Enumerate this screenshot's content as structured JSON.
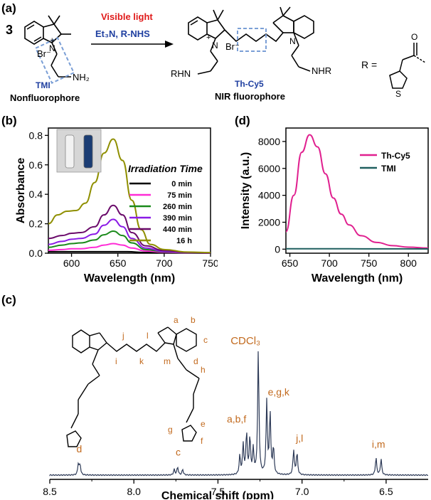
{
  "panels": {
    "a": {
      "label": "(a)",
      "coefficient": "3",
      "reaction_condition_1": "Visible light",
      "reaction_condition_2": "Et₃N, R-NHS",
      "reactant_name": "TMI",
      "reactant_desc": "Nonfluorophore",
      "product_name": "Th-Cy5",
      "product_desc": "NIR fluorophore",
      "bromide": "Br⁻",
      "nh2": "NH₂",
      "rhn": "RHN",
      "nhr": "NHR",
      "r_eq": "R =",
      "s_atom": "S",
      "o_atom": "O",
      "n_atom": "N",
      "plus": "+"
    },
    "b": {
      "label": "(b)"
    },
    "c": {
      "label": "(c)"
    },
    "d": {
      "label": "(d)"
    }
  },
  "chart_data": [
    {
      "panel": "b",
      "type": "line",
      "xlabel": "Wavelength (nm)",
      "ylabel": "Absorbance",
      "xlim": [
        575,
        750
      ],
      "ylim": [
        0,
        0.85
      ],
      "xticks": [
        600,
        650,
        700,
        750
      ],
      "yticks": [
        0.0,
        0.2,
        0.4,
        0.6,
        0.8
      ],
      "legend_title": "Irradiation Time",
      "legend_position": "right",
      "series": [
        {
          "name": "0 min",
          "color": "#000000",
          "x": [
            575,
            600,
            625,
            645,
            660,
            680,
            700,
            725,
            750
          ],
          "y": [
            0.01,
            0.01,
            0.01,
            0.01,
            0.01,
            0.005,
            0.003,
            0.002,
            0.001
          ]
        },
        {
          "name": "75 min",
          "color": "#ff2bd6",
          "x": [
            575,
            590,
            600,
            610,
            625,
            635,
            645,
            655,
            665,
            680,
            700,
            725,
            750
          ],
          "y": [
            0.02,
            0.025,
            0.03,
            0.03,
            0.04,
            0.055,
            0.065,
            0.055,
            0.035,
            0.015,
            0.007,
            0.003,
            0.002
          ]
        },
        {
          "name": "260 min",
          "color": "#1a8a1a",
          "x": [
            575,
            590,
            600,
            610,
            625,
            635,
            645,
            655,
            665,
            680,
            700,
            725,
            750
          ],
          "y": [
            0.04,
            0.055,
            0.065,
            0.07,
            0.09,
            0.125,
            0.15,
            0.12,
            0.07,
            0.025,
            0.01,
            0.004,
            0.002
          ]
        },
        {
          "name": "390 min",
          "color": "#8a1ae6",
          "x": [
            575,
            590,
            600,
            610,
            625,
            635,
            645,
            655,
            665,
            680,
            700,
            725,
            750
          ],
          "y": [
            0.06,
            0.08,
            0.095,
            0.1,
            0.13,
            0.19,
            0.23,
            0.18,
            0.1,
            0.035,
            0.012,
            0.005,
            0.002
          ]
        },
        {
          "name": "440 min",
          "color": "#6a0a6a",
          "x": [
            575,
            590,
            600,
            610,
            625,
            635,
            645,
            655,
            665,
            680,
            700,
            725,
            750
          ],
          "y": [
            0.1,
            0.12,
            0.135,
            0.14,
            0.18,
            0.26,
            0.325,
            0.26,
            0.14,
            0.05,
            0.018,
            0.006,
            0.003
          ]
        },
        {
          "name": "16 h",
          "color": "#8f8f00",
          "x": [
            575,
            585,
            595,
            605,
            615,
            625,
            635,
            645,
            655,
            665,
            675,
            685,
            700,
            725,
            750
          ],
          "y": [
            0.2,
            0.26,
            0.285,
            0.29,
            0.34,
            0.48,
            0.68,
            0.775,
            0.63,
            0.36,
            0.16,
            0.06,
            0.025,
            0.008,
            0.004
          ]
        }
      ]
    },
    {
      "panel": "d",
      "type": "line",
      "xlabel": "Wavelength (nm)",
      "ylabel": "Intensity (a.u.)",
      "xlim": [
        645,
        825
      ],
      "ylim": [
        -300,
        9000
      ],
      "xticks": [
        650,
        700,
        750,
        800
      ],
      "yticks": [
        0,
        2000,
        4000,
        6000,
        8000
      ],
      "legend_position": "top-right",
      "series": [
        {
          "name": "Th-Cy5",
          "color": "#e0208f",
          "x": [
            645,
            655,
            665,
            675,
            685,
            695,
            705,
            715,
            725,
            740,
            760,
            780,
            800,
            825
          ],
          "y": [
            1300,
            4000,
            7200,
            8500,
            7600,
            5600,
            3800,
            2600,
            1800,
            1000,
            500,
            260,
            150,
            80
          ]
        },
        {
          "name": "TMI",
          "color": "#1f5f5f",
          "x": [
            645,
            700,
            750,
            825
          ],
          "y": [
            30,
            30,
            25,
            20
          ]
        }
      ]
    },
    {
      "panel": "c",
      "type": "line",
      "xlabel": "Chemical shift (ppm)",
      "xlim": [
        8.5,
        6.25
      ],
      "xticks": [
        8.5,
        8.0,
        7.5,
        7.0,
        6.5
      ],
      "solvent_label": "CDCl₃",
      "peaks": [
        {
          "label": "d",
          "ppm": [
            8.33,
            8.32
          ],
          "height": [
            0.09,
            0.08
          ]
        },
        {
          "label": "c",
          "ppm": [
            7.76,
            7.74,
            7.71
          ],
          "height": [
            0.045,
            0.065,
            0.045
          ]
        },
        {
          "label": "a,b,f",
          "ppm": [
            7.37,
            7.35,
            7.33,
            7.31,
            7.29
          ],
          "height": [
            0.15,
            0.24,
            0.34,
            0.3,
            0.2
          ]
        },
        {
          "label": "CDCl₃",
          "ppm": [
            7.26
          ],
          "height": [
            1.0
          ]
        },
        {
          "label": "e,g,k",
          "ppm": [
            7.21,
            7.19,
            7.17
          ],
          "height": [
            0.58,
            0.5,
            0.22
          ]
        },
        {
          "label": "j,l",
          "ppm": [
            7.05,
            7.03
          ],
          "height": [
            0.2,
            0.18
          ]
        },
        {
          "label": "i,m",
          "ppm": [
            6.56,
            6.53
          ],
          "height": [
            0.14,
            0.13
          ]
        }
      ],
      "atom_labels": [
        "a",
        "b",
        "c",
        "d",
        "h",
        "i",
        "j",
        "k",
        "l",
        "m",
        "g",
        "e",
        "f"
      ]
    }
  ],
  "colors": {
    "accent_blue": "#1f3fa0",
    "accent_red": "#e01b1b",
    "annotation_orange": "#c26a1e",
    "nmr_line": "#2d3a57",
    "dashed_box": "#7b9fd6"
  }
}
